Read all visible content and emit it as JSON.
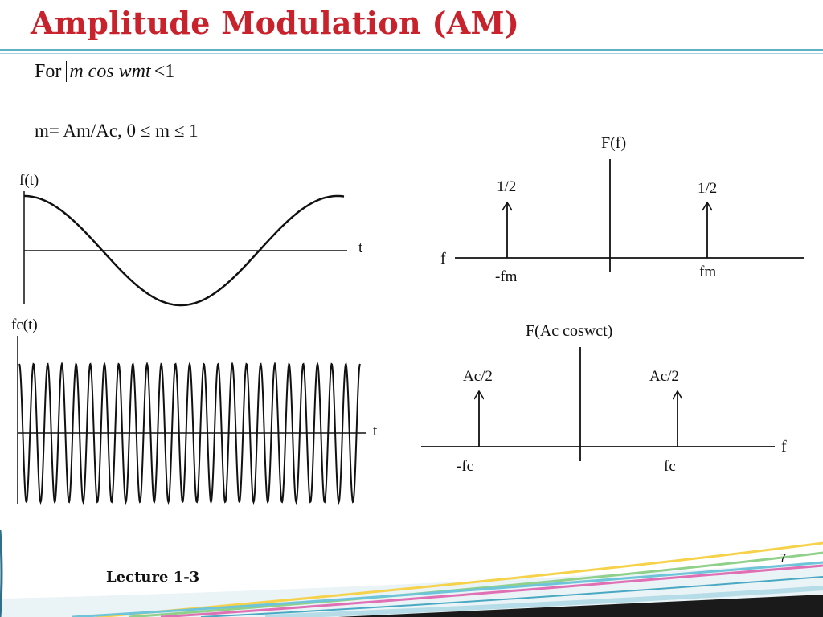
{
  "slide": {
    "title": "Amplitude Modulation (AM)",
    "condition": {
      "prefix": "For",
      "expression": "m cos wmt",
      "suffix": "<1"
    },
    "modulation_index": "m= Am/Ac,  0 ≤ m ≤ 1",
    "page_number": "7",
    "footer": "Lecture 1-3"
  },
  "plots": {
    "message": {
      "ylabel": "f(t)",
      "xlabel": "t"
    },
    "carrier": {
      "ylabel": "fc(t)",
      "xlabel": "t"
    }
  },
  "spectra": {
    "message": {
      "title": "F(f)",
      "axis_label": "f",
      "left_amp": "1/2",
      "right_amp": "1/2",
      "left_freq": "-fm",
      "right_freq": "fm"
    },
    "carrier": {
      "title": "F(Ac coswct)",
      "axis_label": "f",
      "left_amp": "Ac/2",
      "right_amp": "Ac/2",
      "left_freq": "-fc",
      "right_freq": "fc"
    }
  },
  "colors": {
    "title": "#c8232c",
    "rule": "#5fb0c6"
  }
}
